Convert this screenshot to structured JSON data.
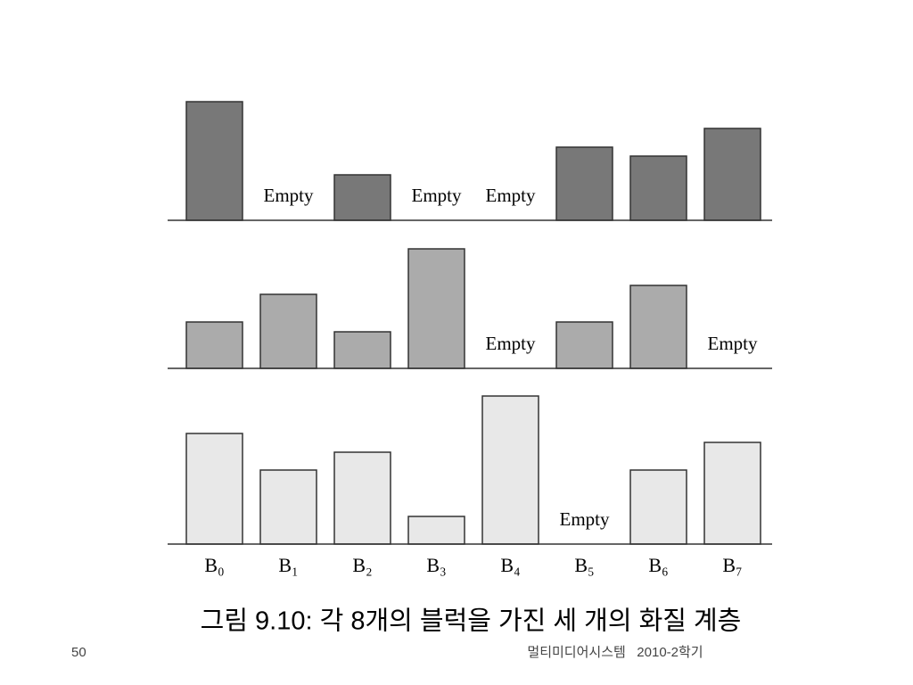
{
  "chart_data": {
    "type": "bar",
    "title": "그림 9.10: 각 8개의 블럭을 가진 세 개의 화질 계층",
    "categories": [
      "B₀",
      "B₁",
      "B₂",
      "B₃",
      "B₄",
      "B₅",
      "B₆",
      "B₇"
    ],
    "empty_label": "Empty",
    "ylim": [
      0,
      170
    ],
    "series": [
      {
        "color": "#787878",
        "values": [
          133,
          null,
          51,
          null,
          null,
          82,
          72,
          103
        ]
      },
      {
        "color": "#ababab",
        "values": [
          52,
          83,
          41,
          134,
          null,
          52,
          93,
          null
        ]
      },
      {
        "color": "#e8e8e8",
        "values": [
          124,
          83,
          103,
          31,
          166,
          null,
          83,
          114
        ]
      }
    ]
  },
  "footer": {
    "page_number": "50",
    "course": "멀티미디어시스템   2010-2학기"
  }
}
